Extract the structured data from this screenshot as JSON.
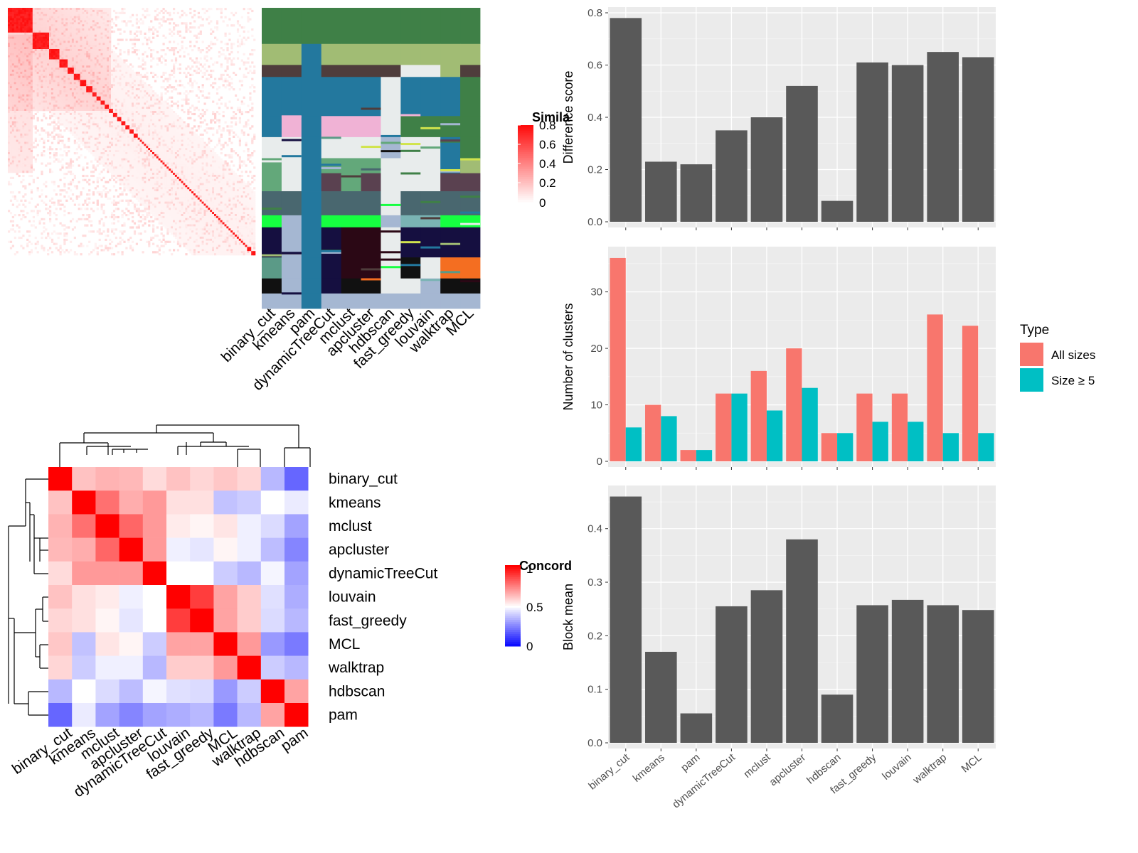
{
  "methods": [
    "binary_cut",
    "kmeans",
    "pam",
    "dynamicTreeCut",
    "mclust",
    "apcluster",
    "hdbscan",
    "fast_greedy",
    "louvain",
    "walktrap",
    "MCL"
  ],
  "similarity_legend": {
    "title": "Simila",
    "ticks": [
      "0.8",
      "0.6",
      "0.4",
      "0.2",
      "0"
    ],
    "colors": [
      "#ffffff",
      "#ff0000"
    ]
  },
  "concordance_legend": {
    "title": "Concord",
    "ticks": [
      "1",
      "0.5",
      "0"
    ],
    "colors": [
      "#0000ff",
      "#ffffff",
      "#ff0000"
    ]
  },
  "concordance_rows": [
    "binary_cut",
    "kmeans",
    "mclust",
    "apcluster",
    "dynamicTreeCut",
    "louvain",
    "fast_greedy",
    "MCL",
    "walktrap",
    "hdbscan",
    "pam"
  ],
  "concordance_matrix": [
    [
      1.0,
      0.62,
      0.65,
      0.64,
      0.57,
      0.62,
      0.58,
      0.61,
      0.58,
      0.36,
      0.2
    ],
    [
      0.62,
      1.0,
      0.78,
      0.66,
      0.7,
      0.56,
      0.56,
      0.38,
      0.4,
      0.5,
      0.46
    ],
    [
      0.65,
      0.78,
      1.0,
      0.8,
      0.7,
      0.54,
      0.52,
      0.55,
      0.47,
      0.43,
      0.32
    ],
    [
      0.64,
      0.66,
      0.8,
      1.0,
      0.7,
      0.47,
      0.45,
      0.52,
      0.47,
      0.37,
      0.26
    ],
    [
      0.57,
      0.7,
      0.7,
      0.7,
      1.0,
      0.5,
      0.5,
      0.4,
      0.36,
      0.48,
      0.32
    ],
    [
      0.62,
      0.56,
      0.54,
      0.47,
      0.5,
      1.0,
      0.88,
      0.68,
      0.6,
      0.44,
      0.34
    ],
    [
      0.58,
      0.56,
      0.52,
      0.45,
      0.5,
      0.88,
      1.0,
      0.68,
      0.6,
      0.43,
      0.36
    ],
    [
      0.61,
      0.38,
      0.55,
      0.52,
      0.4,
      0.68,
      0.68,
      1.0,
      0.7,
      0.3,
      0.24
    ],
    [
      0.58,
      0.4,
      0.47,
      0.47,
      0.36,
      0.6,
      0.6,
      0.7,
      1.0,
      0.4,
      0.36
    ],
    [
      0.36,
      0.5,
      0.43,
      0.37,
      0.48,
      0.44,
      0.43,
      0.3,
      0.4,
      1.0,
      0.68
    ],
    [
      0.2,
      0.46,
      0.32,
      0.26,
      0.32,
      0.34,
      0.36,
      0.24,
      0.36,
      0.68,
      1.0
    ]
  ],
  "chart_data": [
    {
      "type": "bar",
      "ylabel": "Difference score",
      "categories": [
        "binary_cut",
        "kmeans",
        "pam",
        "dynamicTreeCut",
        "mclust",
        "apcluster",
        "hdbscan",
        "fast_greedy",
        "louvain",
        "walktrap",
        "MCL"
      ],
      "values": [
        0.78,
        0.23,
        0.22,
        0.35,
        0.4,
        0.52,
        0.08,
        0.61,
        0.6,
        0.65,
        0.63
      ],
      "ylim": [
        0,
        0.8
      ],
      "yticks": [
        "0.0",
        "0.2",
        "0.4",
        "0.6",
        "0.8"
      ],
      "bar_color": "#595959"
    },
    {
      "type": "bar",
      "ylabel": "Number of clusters",
      "categories": [
        "binary_cut",
        "kmeans",
        "pam",
        "dynamicTreeCut",
        "mclust",
        "apcluster",
        "hdbscan",
        "fast_greedy",
        "louvain",
        "walktrap",
        "MCL"
      ],
      "series": [
        {
          "name": "All sizes",
          "color": "#f8766d",
          "values": [
            36,
            10,
            2,
            12,
            16,
            20,
            5,
            12,
            12,
            26,
            24
          ]
        },
        {
          "name": "Size ≥ 5",
          "color": "#00bfc4",
          "values": [
            6,
            8,
            2,
            12,
            9,
            13,
            5,
            7,
            7,
            5,
            5
          ]
        }
      ],
      "ylim": [
        0,
        37
      ],
      "yticks": [
        "0",
        "10",
        "20",
        "30"
      ],
      "legend": {
        "title": "Type",
        "position": "right"
      }
    },
    {
      "type": "bar",
      "ylabel": "Block mean",
      "categories": [
        "binary_cut",
        "kmeans",
        "pam",
        "dynamicTreeCut",
        "mclust",
        "apcluster",
        "hdbscan",
        "fast_greedy",
        "louvain",
        "walktrap",
        "MCL"
      ],
      "values": [
        0.46,
        0.17,
        0.055,
        0.255,
        0.285,
        0.38,
        0.09,
        0.257,
        0.267,
        0.257,
        0.248
      ],
      "ylim": [
        0,
        0.47
      ],
      "yticks": [
        "0.0",
        "0.1",
        "0.2",
        "0.3",
        "0.4"
      ],
      "bar_color": "#595959"
    }
  ]
}
